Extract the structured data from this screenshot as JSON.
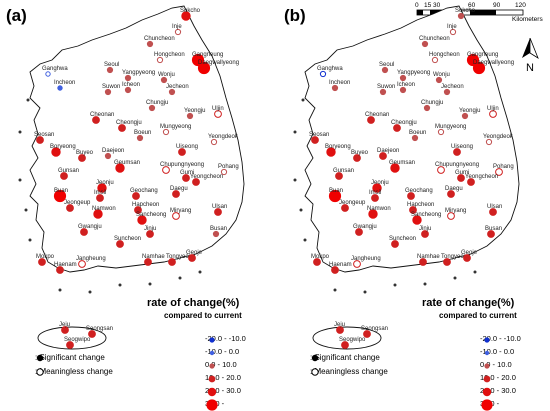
{
  "panels": [
    {
      "id": "a",
      "label": "(a)"
    },
    {
      "id": "b",
      "label": "(b)"
    }
  ],
  "legend": {
    "title": "rate of change(%)",
    "subtitle": "compared to current",
    "classes": [
      {
        "label": "-20.0 - -10.0",
        "color": "#1030d0"
      },
      {
        "label": "-10.0 - 0.0",
        "color": "#4060e0"
      },
      {
        "label": "0.0 - 10.0",
        "color": "#c05050"
      },
      {
        "label": "10.0 - 20.0",
        "color": "#d02020"
      },
      {
        "label": "20.0 - 30.0",
        "color": "#e01010"
      },
      {
        "label": "30.0 -",
        "color": "#f00000"
      }
    ],
    "significant": ": Significant change",
    "meaningless": ": Meaningless change"
  },
  "scalebar": {
    "ticks": [
      "0",
      "15 30",
      "60",
      "90",
      "120"
    ],
    "unit": "Kilometers"
  },
  "north_label": "N",
  "stations": [
    {
      "name": "Sokcho"
    },
    {
      "name": "Inje"
    },
    {
      "name": "Chuncheon"
    },
    {
      "name": "Ganghwa"
    },
    {
      "name": "Gangneung"
    },
    {
      "name": "Daegwallyeong"
    },
    {
      "name": "Hongcheon"
    },
    {
      "name": "Seoul"
    },
    {
      "name": "Yangpyeong"
    },
    {
      "name": "Wonju"
    },
    {
      "name": "Incheon"
    },
    {
      "name": "Suwon"
    },
    {
      "name": "Icheon"
    },
    {
      "name": "Jecheon"
    },
    {
      "name": "Chungju"
    },
    {
      "name": "Uljin"
    },
    {
      "name": "Yeongju"
    },
    {
      "name": "Seosan"
    },
    {
      "name": "Cheonan"
    },
    {
      "name": "Cheongju"
    },
    {
      "name": "Mungyeong"
    },
    {
      "name": "Boeun"
    },
    {
      "name": "Yeongdeok"
    },
    {
      "name": "Boryeong"
    },
    {
      "name": "Buyeo"
    },
    {
      "name": "Daejeon"
    },
    {
      "name": "Uiseong"
    },
    {
      "name": "Geumsan"
    },
    {
      "name": "Chupungnyeong"
    },
    {
      "name": "Gumi"
    },
    {
      "name": "Pohang"
    },
    {
      "name": "Gunsan"
    },
    {
      "name": "Jeonju"
    },
    {
      "name": "Yeongcheon"
    },
    {
      "name": "Daegu"
    },
    {
      "name": "Buan"
    },
    {
      "name": "Imsil"
    },
    {
      "name": "Geochang"
    },
    {
      "name": "Jeongeup"
    },
    {
      "name": "Hapcheon"
    },
    {
      "name": "Miryang"
    },
    {
      "name": "Ulsan"
    },
    {
      "name": "Namwon"
    },
    {
      "name": "Sancheong"
    },
    {
      "name": "Gwangju"
    },
    {
      "name": "Jinju"
    },
    {
      "name": "Busan"
    },
    {
      "name": "Suncheon"
    },
    {
      "name": "Mokpo"
    },
    {
      "name": "Jangheung"
    },
    {
      "name": "Haenam"
    },
    {
      "name": "Namhae"
    },
    {
      "name": "Tongyeong"
    },
    {
      "name": "Geoje"
    },
    {
      "name": "Jeju"
    },
    {
      "name": "Seogwipo"
    },
    {
      "name": "Seongsan"
    }
  ]
}
